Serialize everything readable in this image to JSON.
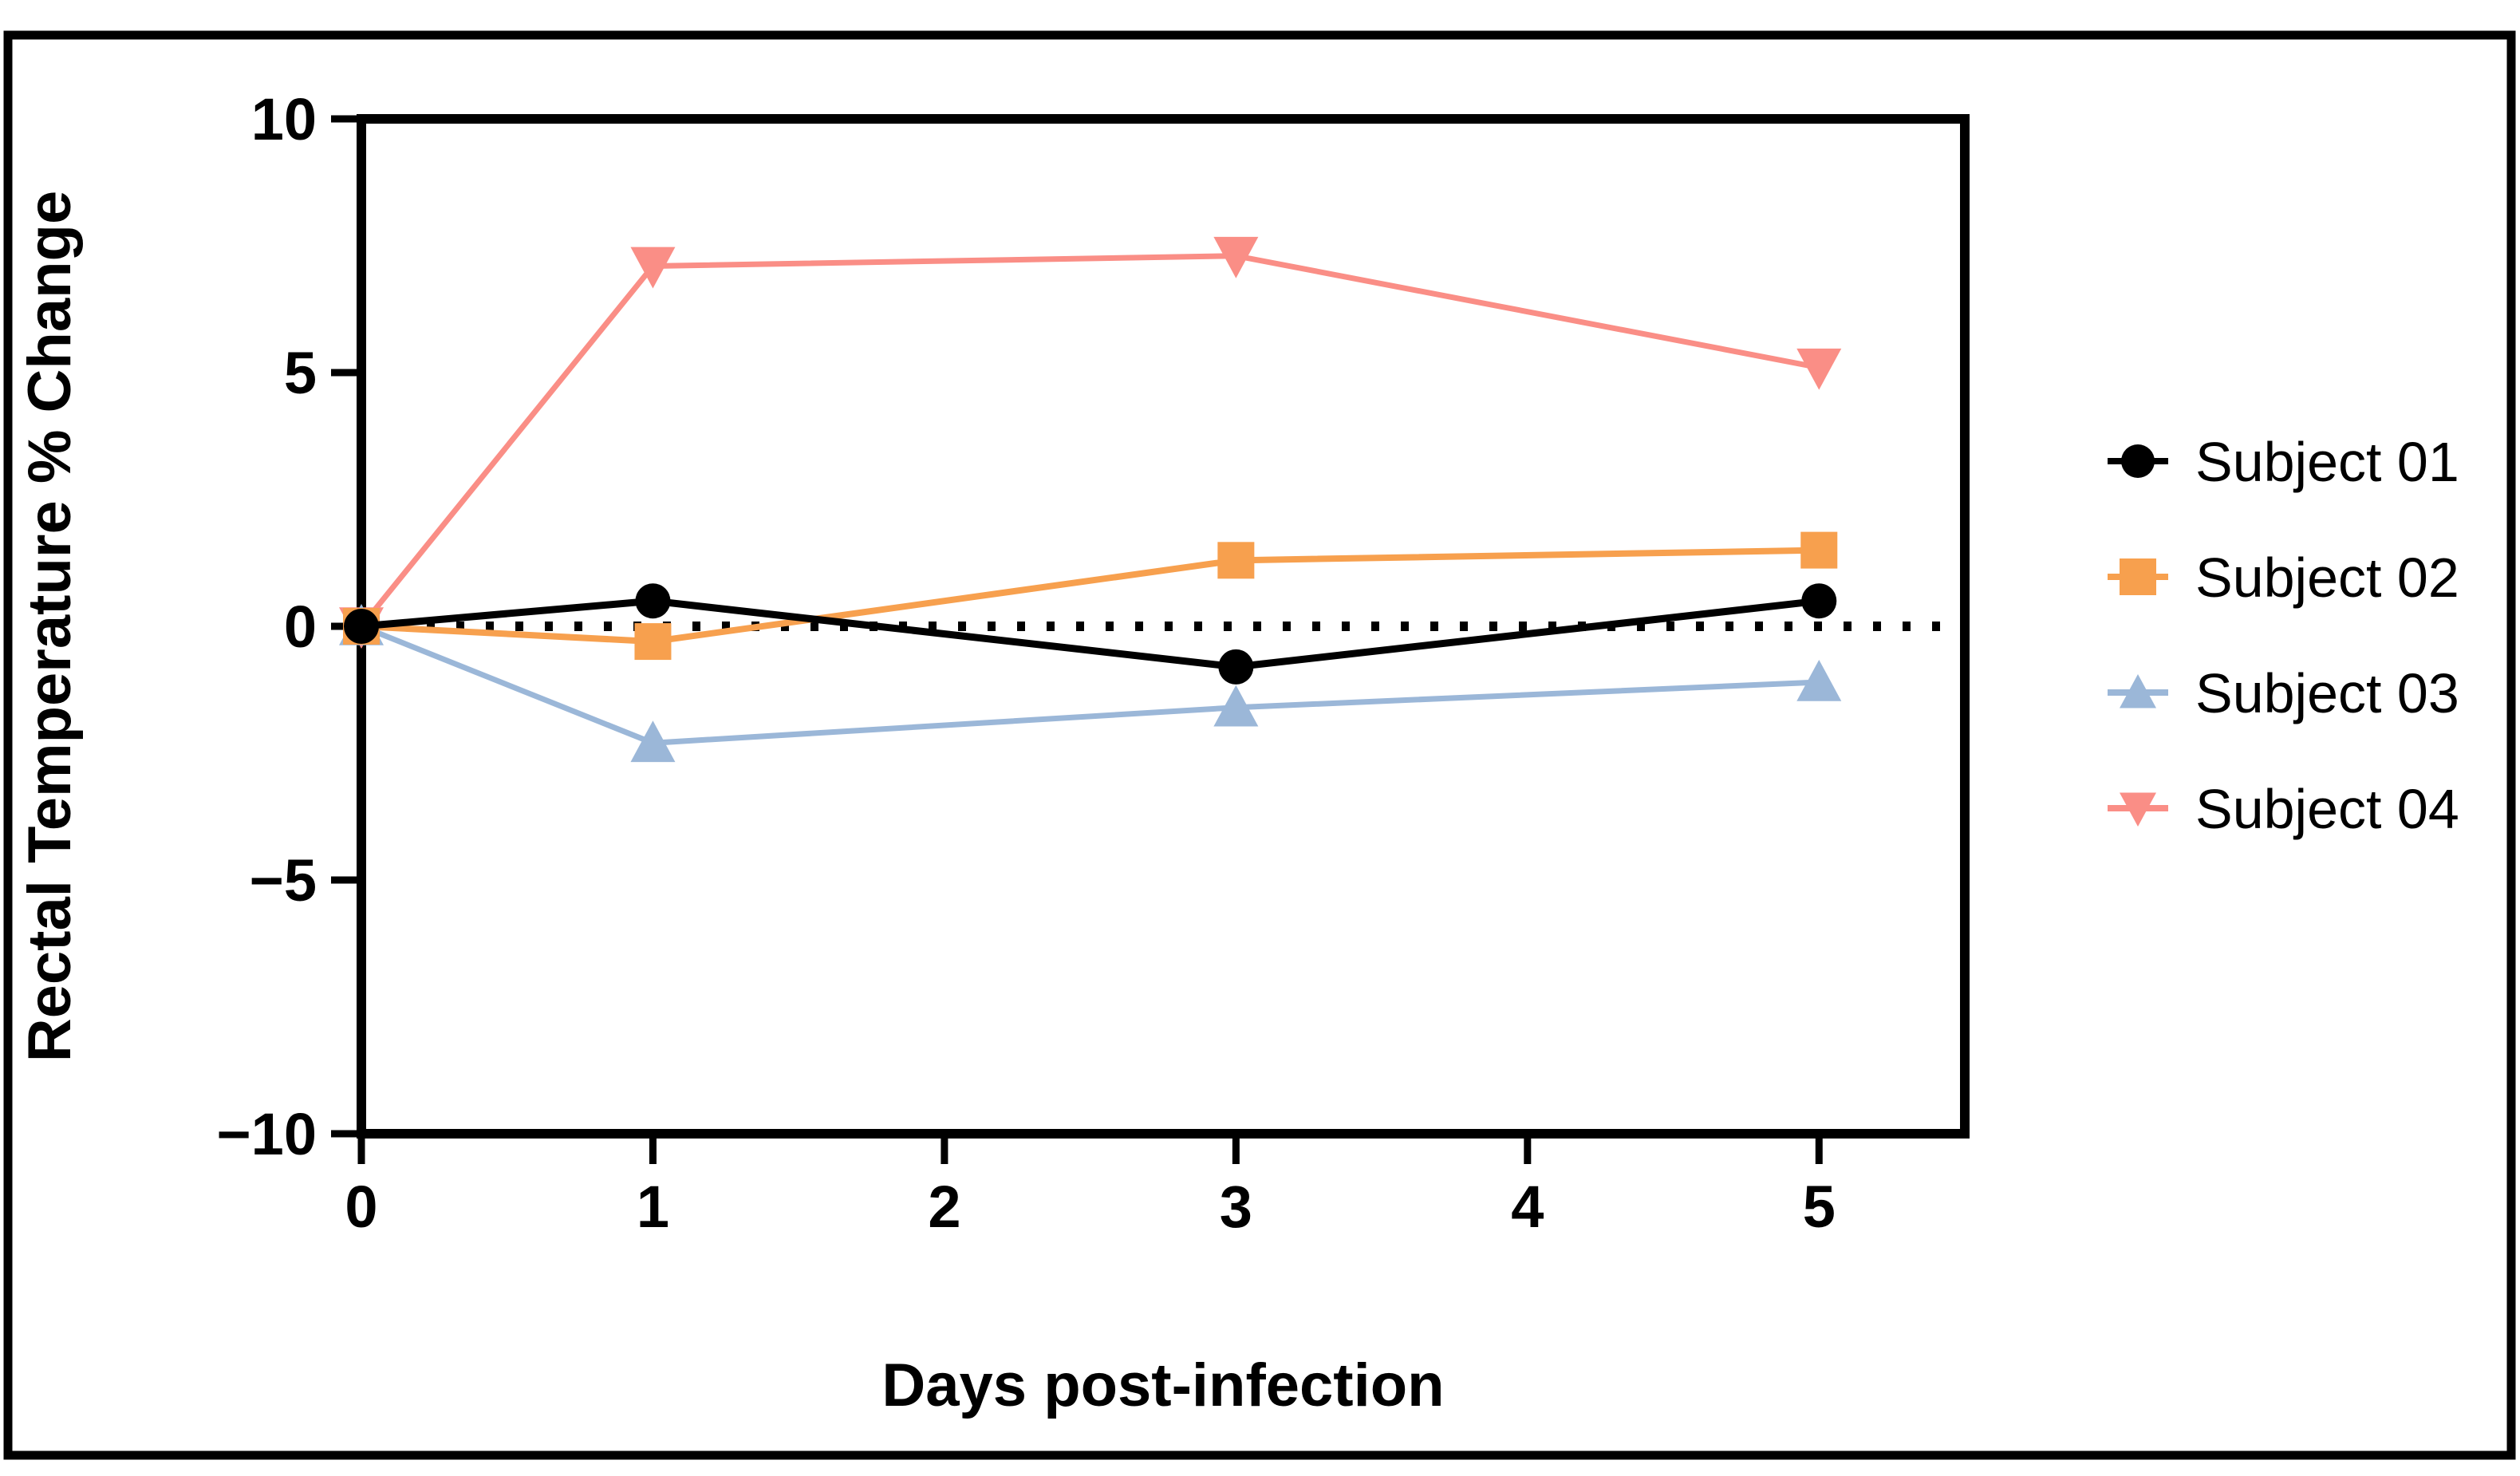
{
  "figure": {
    "kind": "scientific-line-plot",
    "background": "#ffffff",
    "border_color": "#000000"
  },
  "chart_data": {
    "type": "line",
    "title": "",
    "xlabel": "Days post-infection",
    "ylabel": "Rectal Temperature % Change",
    "x": [
      0,
      1,
      3,
      5
    ],
    "xlim": [
      0,
      5.5
    ],
    "ylim": [
      -10,
      10
    ],
    "xticks": [
      "0",
      "1",
      "2",
      "3",
      "4",
      "5"
    ],
    "xtick_values": [
      0,
      1,
      2,
      3,
      4,
      5
    ],
    "yticks": [
      "10",
      "5",
      "0",
      "−5",
      "−10"
    ],
    "ytick_values": [
      10,
      5,
      0,
      -5,
      -10
    ],
    "grid": false,
    "zero_line_style": "dotted",
    "legend_position": "right",
    "series": [
      {
        "name": "Subject 01",
        "color": "#000000",
        "marker": "circle",
        "values": [
          0,
          0.5,
          -0.8,
          0.5
        ]
      },
      {
        "name": "Subject 02",
        "color": "#F7A04E",
        "marker": "square",
        "values": [
          0,
          -0.3,
          1.3,
          1.5
        ]
      },
      {
        "name": "Subject 03",
        "color": "#9BB7D8",
        "marker": "triangle-up",
        "values": [
          0,
          -2.3,
          -1.6,
          -1.1
        ]
      },
      {
        "name": "Subject 04",
        "color": "#FA8E86",
        "marker": "triangle-down",
        "values": [
          0,
          7.1,
          7.3,
          5.1
        ]
      }
    ]
  }
}
